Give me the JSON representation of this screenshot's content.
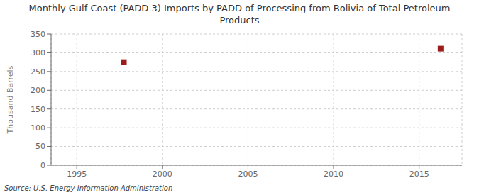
{
  "chart_data": {
    "type": "scatter",
    "title": "Monthly Gulf Coast (PADD 3) Imports by PADD of Processing from Bolivia of Total Petroleum\nProducts",
    "ylabel": "Thousand Barrels",
    "source": "Source: U.S. Energy Information Administration",
    "xlim": [
      1993.5,
      2017.5
    ],
    "ylim": [
      0,
      350
    ],
    "xticks": [
      1995,
      2000,
      2005,
      2010,
      2015
    ],
    "yticks": [
      0,
      50,
      100,
      150,
      200,
      250,
      300,
      350
    ],
    "grid": true,
    "series": [
      {
        "type": "line",
        "color": "#9b1c1c",
        "x": [
          1994.0,
          2004.0
        ],
        "values": [
          0,
          0
        ]
      },
      {
        "type": "scatter",
        "color": "#9b1c1c",
        "marker": "square",
        "x": [
          1997.75,
          2016.25
        ],
        "values": [
          275,
          311
        ]
      }
    ]
  }
}
